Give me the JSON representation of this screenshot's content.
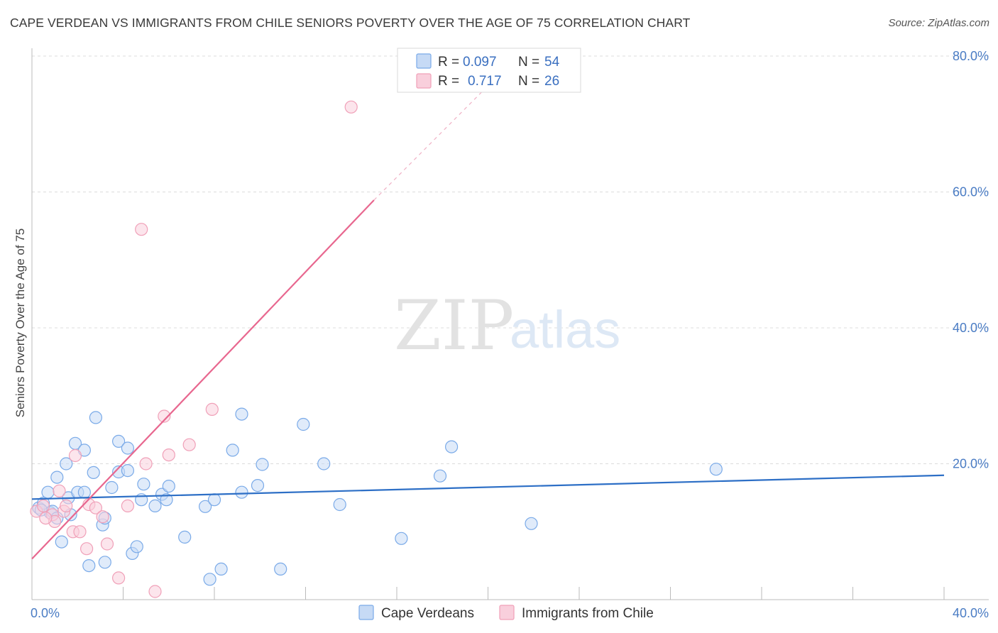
{
  "title": "CAPE VERDEAN VS IMMIGRANTS FROM CHILE SENIORS POVERTY OVER THE AGE OF 75 CORRELATION CHART",
  "source": "Source: ZipAtlas.com",
  "watermark": {
    "part1": "ZIP",
    "part2": "atlas"
  },
  "chart_data": {
    "type": "scatter",
    "xlabel": "",
    "ylabel": "Seniors Poverty Over the Age of 75",
    "xlim": [
      0,
      40
    ],
    "ylim": [
      0,
      80
    ],
    "x_tick_labels": [
      {
        "value": 0,
        "label": "0.0%"
      },
      {
        "value": 40,
        "label": "40.0%"
      }
    ],
    "y_tick_labels": [
      {
        "value": 20,
        "label": "20.0%"
      },
      {
        "value": 40,
        "label": "40.0%"
      },
      {
        "value": 60,
        "label": "60.0%"
      },
      {
        "value": 80,
        "label": "80.0%"
      }
    ],
    "grid": true,
    "legend_position": "top-center",
    "series": [
      {
        "name": "Cape Verdeans",
        "color": "#7aaae8",
        "fill": "#c6daf5",
        "line_color": "#2d6fc6",
        "R": "0.097",
        "N": "54",
        "trend": {
          "x0": 0,
          "y0": 14.8,
          "x1": 40,
          "y1": 18.3
        },
        "points": [
          [
            0.3,
            13.5
          ],
          [
            0.5,
            14.2
          ],
          [
            0.7,
            15.8
          ],
          [
            0.8,
            12.8
          ],
          [
            0.9,
            13.0
          ],
          [
            1.1,
            12.0
          ],
          [
            1.1,
            18.0
          ],
          [
            1.3,
            8.5
          ],
          [
            1.5,
            20.0
          ],
          [
            1.6,
            15.0
          ],
          [
            1.7,
            12.5
          ],
          [
            1.9,
            23.0
          ],
          [
            2.0,
            15.8
          ],
          [
            2.3,
            22.0
          ],
          [
            2.3,
            15.8
          ],
          [
            2.5,
            5.0
          ],
          [
            2.7,
            18.7
          ],
          [
            2.8,
            26.8
          ],
          [
            3.1,
            11.0
          ],
          [
            3.2,
            5.5
          ],
          [
            3.2,
            12.0
          ],
          [
            3.5,
            16.5
          ],
          [
            3.8,
            23.3
          ],
          [
            3.8,
            18.8
          ],
          [
            4.2,
            22.3
          ],
          [
            4.2,
            19.0
          ],
          [
            4.4,
            6.8
          ],
          [
            4.6,
            7.8
          ],
          [
            4.8,
            14.7
          ],
          [
            4.9,
            17.0
          ],
          [
            5.4,
            13.8
          ],
          [
            5.7,
            15.5
          ],
          [
            5.9,
            14.7
          ],
          [
            6.0,
            16.7
          ],
          [
            6.7,
            9.2
          ],
          [
            7.6,
            13.7
          ],
          [
            7.8,
            3.0
          ],
          [
            8.0,
            14.7
          ],
          [
            8.3,
            4.5
          ],
          [
            8.8,
            22.0
          ],
          [
            9.2,
            15.8
          ],
          [
            9.2,
            27.3
          ],
          [
            9.9,
            16.8
          ],
          [
            10.1,
            19.9
          ],
          [
            10.9,
            4.5
          ],
          [
            11.9,
            25.8
          ],
          [
            12.8,
            20.0
          ],
          [
            13.5,
            14.0
          ],
          [
            16.2,
            9.0
          ],
          [
            17.9,
            18.2
          ],
          [
            18.4,
            22.5
          ],
          [
            21.9,
            11.2
          ],
          [
            30.0,
            19.2
          ],
          [
            0.4,
            13.2
          ]
        ]
      },
      {
        "name": "Immigrants from Chile",
        "color": "#f0a0b8",
        "fill": "#f9cfdc",
        "line_color": "#e8678f",
        "R": "0.717",
        "N": "26",
        "trend": {
          "x0": 0,
          "y0": 6.0,
          "x1": 15.0,
          "y1": 58.8
        },
        "trend_dashed": {
          "x0": 15.0,
          "y0": 58.8,
          "x1": 21.0,
          "y1": 79.0
        },
        "points": [
          [
            0.2,
            13.0
          ],
          [
            0.5,
            13.8
          ],
          [
            0.9,
            12.5
          ],
          [
            1.0,
            11.5
          ],
          [
            1.2,
            16.0
          ],
          [
            1.4,
            13.0
          ],
          [
            1.5,
            13.8
          ],
          [
            1.8,
            10.0
          ],
          [
            1.9,
            21.2
          ],
          [
            2.1,
            10.0
          ],
          [
            2.4,
            7.5
          ],
          [
            2.5,
            14.0
          ],
          [
            2.8,
            13.5
          ],
          [
            3.1,
            12.2
          ],
          [
            3.3,
            8.2
          ],
          [
            3.8,
            3.2
          ],
          [
            4.2,
            13.8
          ],
          [
            4.8,
            54.5
          ],
          [
            5.0,
            20.0
          ],
          [
            5.4,
            1.2
          ],
          [
            5.8,
            27.0
          ],
          [
            6.0,
            21.3
          ],
          [
            6.9,
            22.8
          ],
          [
            7.9,
            28.0
          ],
          [
            14.0,
            72.5
          ],
          [
            0.6,
            12.0
          ]
        ]
      }
    ]
  },
  "legend": {
    "r_label": "R =",
    "n_label": "N ="
  }
}
